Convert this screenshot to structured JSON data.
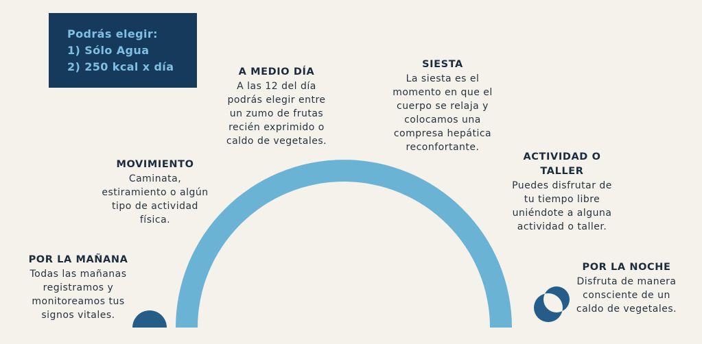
{
  "choice_box": {
    "title": "Podrás elegir:",
    "option_1": "1) Sólo Agua",
    "option_2": "2) 250 kcal x día"
  },
  "stages": {
    "morning": {
      "title": "POR LA MAÑANA",
      "lines": [
        "Todas las mañanas",
        "registramos y",
        "monitoreamos tus",
        "signos vitales."
      ]
    },
    "movement": {
      "title": "MOVIMIENTO",
      "lines": [
        "Caminata,",
        "estiramiento o algún",
        "tipo de actividad",
        "física."
      ]
    },
    "midday": {
      "title": "A MEDIO DÍA",
      "lines": [
        "A las 12 del día",
        "podrás elegir entre",
        "un zumo de frutas",
        "recién exprimido o",
        "caldo de vegetales."
      ]
    },
    "nap": {
      "title": "SIESTA",
      "lines": [
        "La siesta es el",
        "momento en que el",
        "cuerpo se relaja y",
        "colocamos una",
        "compresa hepática",
        "reconfortante."
      ]
    },
    "activity": {
      "title_lines": [
        "ACTIVIDAD O",
        "TALLER"
      ],
      "lines": [
        "Puedes disfrutar de",
        "tu tiempo libre",
        "uniéndote a alguna",
        "actividad o taller."
      ]
    },
    "night": {
      "title": "POR LA NOCHE",
      "lines": [
        "Disfruta de manera",
        "consciente de un",
        "caldo de vegetales."
      ]
    }
  },
  "colors": {
    "background": "#f5f2ec",
    "arc": "#6ab3d5",
    "dark_blue": "#163a5c",
    "icon_blue": "#255d88"
  },
  "icons": {
    "morning": "rising-sun-icon",
    "night": "crescent-moon-icon"
  }
}
